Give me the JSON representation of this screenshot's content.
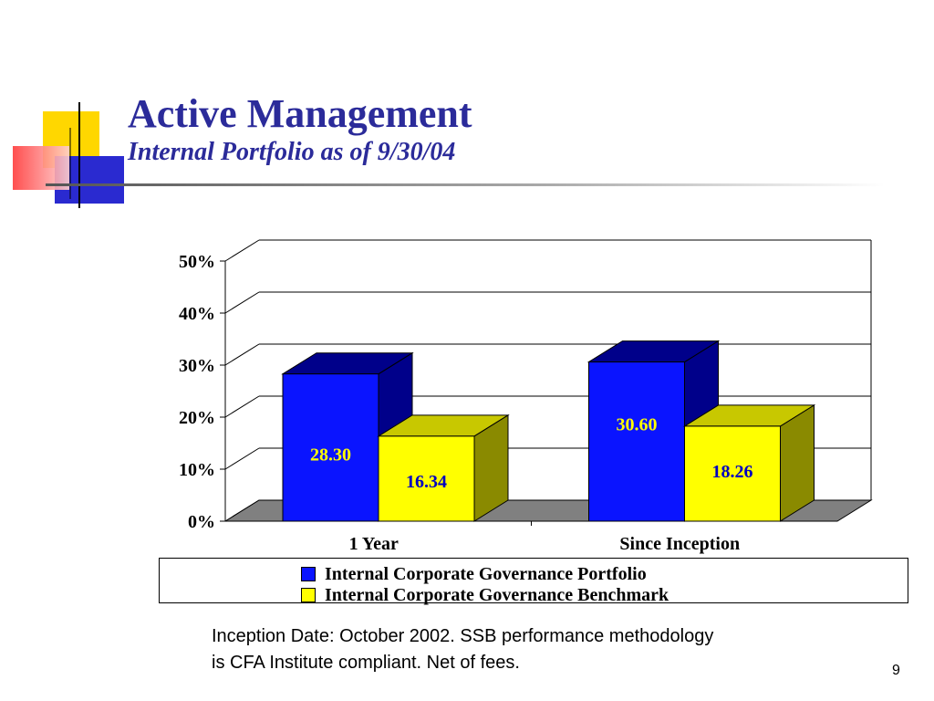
{
  "slide": {
    "title": "Active Management",
    "subtitle": "Internal Portfolio as of  9/30/04",
    "footnote_line1": "Inception Date:  October 2002. SSB performance methodology",
    "footnote_line2": "is CFA Institute compliant. Net of fees.",
    "page_number": "9"
  },
  "colors": {
    "title": "#2b2b9a",
    "portfolio": "#0a14ff",
    "portfolio_dark": "#00008a",
    "benchmark": "#ffff00",
    "benchmark_dark": "#8a8a00",
    "benchmark_top": "#c8c800",
    "floor": "#808080"
  },
  "chart_data": {
    "type": "bar",
    "title": "",
    "xlabel": "",
    "ylabel": "",
    "categories": [
      "1 Year",
      "Since Inception"
    ],
    "series": [
      {
        "name": "Internal Corporate Governance Portfolio",
        "values": [
          28.3,
          30.6
        ],
        "labels": [
          "28.30",
          "30.60"
        ]
      },
      {
        "name": "Internal Corporate Governance Benchmark",
        "values": [
          16.34,
          18.26
        ],
        "labels": [
          "16.34",
          "18.26"
        ]
      }
    ],
    "ylim": [
      0,
      50
    ],
    "yticks": [
      0,
      10,
      20,
      30,
      40,
      50
    ],
    "ytick_labels": [
      "0%",
      "10%",
      "20%",
      "30%",
      "40%",
      "50%"
    ],
    "grid": true,
    "style": "3d",
    "legend_position": "bottom"
  }
}
